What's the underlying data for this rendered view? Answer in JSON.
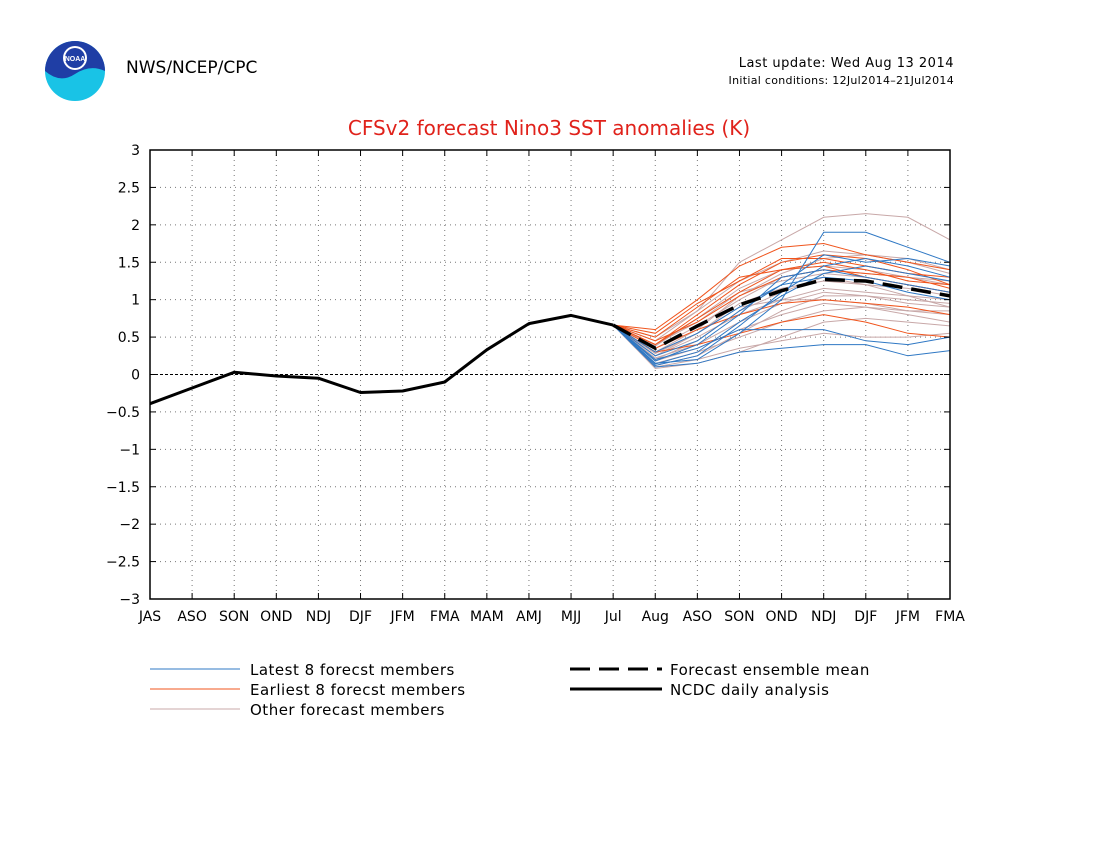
{
  "header": {
    "agency": "NWS/NCEP/CPC",
    "last_update": "Last update: Wed Aug 13 2014",
    "initial_conditions": "Initial conditions: 12Jul2014–21Jul2014",
    "logo_text": "NOAA"
  },
  "colors": {
    "title": "#e0221b",
    "latest": "#2f78c4",
    "earliest": "#f0541c",
    "other": "#c8a8a8",
    "analysis": "#000000"
  },
  "chart_data": {
    "type": "line",
    "title": "CFSv2 forecast Nino3 SST anomalies (K)",
    "categories": [
      "JAS",
      "ASO",
      "SON",
      "OND",
      "NDJ",
      "DJF",
      "JFM",
      "FMA",
      "MAM",
      "AMJ",
      "MJJ",
      "Jul",
      "Aug",
      "ASO",
      "SON",
      "OND",
      "NDJ",
      "DJF",
      "JFM",
      "FMA"
    ],
    "ylim": [
      -3,
      3
    ],
    "yticks": [
      3,
      2.5,
      2,
      1.5,
      1,
      0.5,
      0,
      -0.5,
      -1,
      -1.5,
      -2,
      -2.5,
      -3
    ],
    "ytick_labels": [
      "3",
      "2.5",
      "2",
      "1.5",
      "1",
      "0.5",
      "0",
      "−0.5",
      "−1",
      "−1.5",
      "−2",
      "−2.5",
      "−3"
    ],
    "grid": true,
    "analysis": {
      "name": "NCDC daily analysis",
      "start_index": 0,
      "values": [
        -0.39,
        -0.18,
        0.03,
        -0.02,
        -0.05,
        -0.24,
        -0.22,
        -0.1,
        0.33,
        0.68,
        0.79,
        0.66
      ]
    },
    "ensemble_mean": {
      "name": "Forecast ensemble mean",
      "start_index": 11,
      "values": [
        0.66,
        0.35,
        0.65,
        0.93,
        1.12,
        1.27,
        1.25,
        1.15,
        1.05
      ]
    },
    "latest_members": {
      "name": "Latest 8 forecst members",
      "start_index": 11,
      "values": [
        [
          0.66,
          0.12,
          0.25,
          0.65,
          1.1,
          1.45,
          1.55,
          1.45,
          1.3
        ],
        [
          0.66,
          0.15,
          0.2,
          0.55,
          1.0,
          1.9,
          1.9,
          1.7,
          1.5
        ],
        [
          0.66,
          0.1,
          0.15,
          0.3,
          0.35,
          0.4,
          0.4,
          0.25,
          0.32
        ],
        [
          0.66,
          0.2,
          0.35,
          0.6,
          0.6,
          0.6,
          0.45,
          0.4,
          0.5
        ],
        [
          0.66,
          0.25,
          0.45,
          0.85,
          1.2,
          1.6,
          1.5,
          1.55,
          1.45
        ],
        [
          0.66,
          0.3,
          0.55,
          0.9,
          1.2,
          1.3,
          1.25,
          1.1,
          1.0
        ],
        [
          0.66,
          0.18,
          0.4,
          0.8,
          1.3,
          1.4,
          1.3,
          1.2,
          1.1
        ],
        [
          0.66,
          0.14,
          0.3,
          0.7,
          1.05,
          1.35,
          1.45,
          1.35,
          1.25
        ]
      ]
    },
    "earliest_members": {
      "name": "Earliest 8 forecst members",
      "start_index": 11,
      "values": [
        [
          0.66,
          0.6,
          1.0,
          1.45,
          1.7,
          1.75,
          1.6,
          1.5,
          1.4
        ],
        [
          0.66,
          0.4,
          0.8,
          1.2,
          1.5,
          1.6,
          1.55,
          1.4,
          1.2
        ],
        [
          0.66,
          0.5,
          0.9,
          1.3,
          1.4,
          1.45,
          1.3,
          1.2,
          1.1
        ],
        [
          0.66,
          0.35,
          0.6,
          0.8,
          0.95,
          1.0,
          0.95,
          0.9,
          0.8
        ],
        [
          0.66,
          0.55,
          0.95,
          1.25,
          1.55,
          1.55,
          1.45,
          1.35,
          1.3
        ],
        [
          0.66,
          0.3,
          0.4,
          0.55,
          0.7,
          0.8,
          0.7,
          0.55,
          0.5
        ],
        [
          0.66,
          0.45,
          0.7,
          1.05,
          1.3,
          1.4,
          1.35,
          1.3,
          1.15
        ],
        [
          0.66,
          0.4,
          0.75,
          1.1,
          1.4,
          1.5,
          1.4,
          1.25,
          1.2
        ]
      ]
    },
    "other_members": {
      "name": "Other forecast members",
      "start_index": 11,
      "values": [
        [
          0.66,
          0.45,
          0.85,
          1.5,
          1.8,
          2.1,
          2.15,
          2.1,
          1.8
        ],
        [
          0.66,
          0.2,
          0.45,
          0.85,
          1.1,
          1.3,
          1.2,
          1.05,
          0.9
        ],
        [
          0.66,
          0.25,
          0.55,
          0.9,
          1.0,
          1.0,
          0.95,
          0.85,
          0.8
        ],
        [
          0.66,
          0.1,
          0.2,
          0.35,
          0.45,
          0.55,
          0.5,
          0.5,
          0.55
        ],
        [
          0.66,
          0.35,
          0.65,
          1.0,
          1.3,
          1.4,
          1.35,
          1.3,
          1.25
        ],
        [
          0.66,
          0.18,
          0.35,
          0.6,
          0.8,
          0.95,
          0.9,
          0.85,
          0.85
        ],
        [
          0.66,
          0.3,
          0.6,
          1.05,
          1.35,
          1.55,
          1.6,
          1.55,
          1.4
        ],
        [
          0.66,
          0.12,
          0.25,
          0.55,
          0.85,
          1.05,
          1.05,
          0.95,
          0.9
        ],
        [
          0.66,
          0.4,
          0.7,
          1.1,
          1.25,
          1.35,
          1.3,
          1.2,
          1.1
        ],
        [
          0.66,
          0.22,
          0.4,
          0.7,
          0.95,
          1.1,
          1.05,
          1.0,
          0.95
        ],
        [
          0.66,
          0.28,
          0.55,
          0.95,
          1.15,
          1.25,
          1.2,
          1.15,
          1.05
        ],
        [
          0.66,
          0.15,
          0.3,
          0.5,
          0.7,
          0.85,
          0.9,
          0.8,
          0.7
        ],
        [
          0.66,
          0.5,
          0.85,
          1.25,
          1.5,
          1.65,
          1.6,
          1.5,
          1.35
        ],
        [
          0.66,
          0.08,
          0.15,
          0.3,
          0.5,
          0.7,
          0.75,
          0.7,
          0.65
        ],
        [
          0.66,
          0.38,
          0.75,
          1.15,
          1.4,
          1.45,
          1.4,
          1.3,
          1.2
        ],
        [
          0.66,
          0.25,
          0.5,
          0.8,
          1.0,
          1.15,
          1.1,
          1.05,
          1.0
        ]
      ]
    },
    "legend": {
      "latest": "Latest 8 forecst members",
      "earliest": "Earliest 8 forecst members",
      "other": "Other forecast members",
      "mean": "Forecast ensemble mean",
      "analysis": "NCDC daily analysis"
    }
  }
}
